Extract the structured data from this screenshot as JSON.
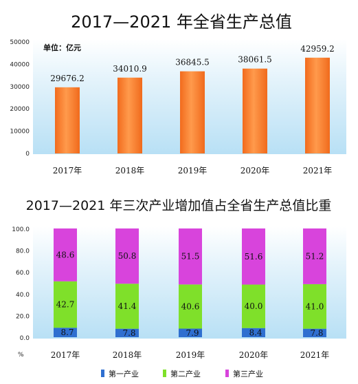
{
  "chart_data": [
    {
      "type": "bar",
      "title": "2017—2021 年全省生产总值",
      "unit_label": "单位：亿元",
      "categories": [
        "2017年",
        "2018年",
        "2019年",
        "2020年",
        "2021年"
      ],
      "values": [
        29676.2,
        34010.9,
        36845.5,
        38061.5,
        42959.2
      ],
      "value_labels": [
        "29676.2",
        "34010.9",
        "36845.5",
        "38061.5",
        "42959.2"
      ],
      "ylim": [
        0,
        50000
      ],
      "y_ticks": [
        "0",
        "10000",
        "20000",
        "30000",
        "40000",
        "50000"
      ],
      "bar_color": "#f47a2c",
      "background": "#c9e8f7"
    },
    {
      "type": "bar",
      "stacked": true,
      "title": "2017—2021 年三次产业增加值占全省生产总值比重",
      "y_unit": "%",
      "categories": [
        "2017年",
        "2018年",
        "2019年",
        "2020年",
        "2021年"
      ],
      "ylim": [
        0,
        100
      ],
      "y_ticks": [
        "0.0",
        "20.0",
        "40.0",
        "60.0",
        "80.0",
        "100.0"
      ],
      "legend_position": "bottom",
      "background": "#c9e8f7",
      "series": [
        {
          "name": "第一产业",
          "values": [
            8.7,
            7.8,
            7.9,
            8.4,
            7.8
          ],
          "labels": [
            "8.7",
            "7.8",
            "7.9",
            "8.4",
            "7.8"
          ],
          "color": "#2f6fd0"
        },
        {
          "name": "第二产业",
          "values": [
            42.7,
            41.4,
            40.6,
            40.0,
            41.0
          ],
          "labels": [
            "42.7",
            "41.4",
            "40.6",
            "40.0",
            "41.0"
          ],
          "color": "#7fe02a"
        },
        {
          "name": "第三产业",
          "values": [
            48.6,
            50.8,
            51.5,
            51.6,
            51.2
          ],
          "labels": [
            "48.6",
            "50.8",
            "51.5",
            "51.6",
            "51.2"
          ],
          "color": "#d844dc"
        }
      ]
    }
  ]
}
